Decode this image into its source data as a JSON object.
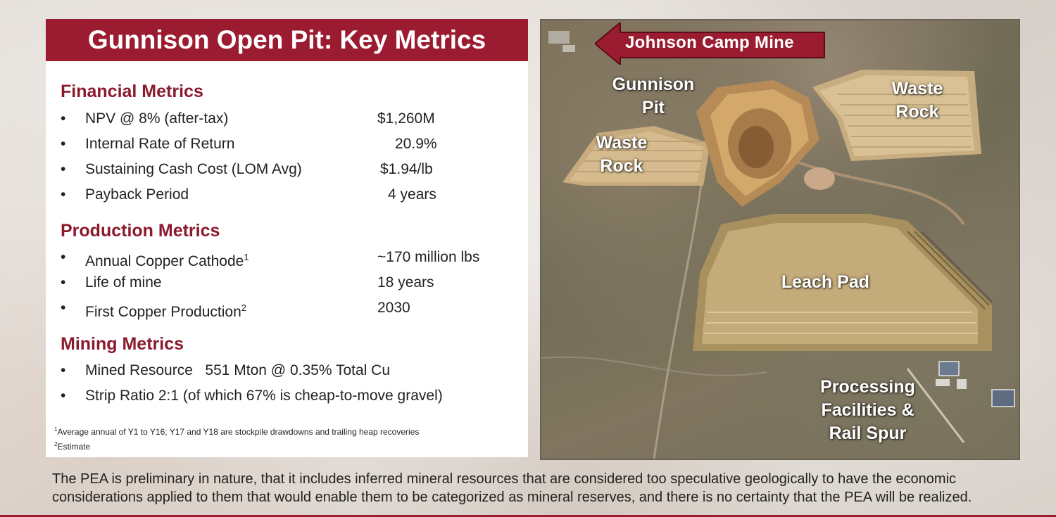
{
  "title": "Gunnison Open Pit: Key Metrics",
  "sections": {
    "financial": {
      "heading": "Financial Metrics",
      "rows": [
        {
          "label": "NPV @ 8% (after-tax)",
          "value": "$1,260M"
        },
        {
          "label": "Internal Rate of Return",
          "value": "20.9%"
        },
        {
          "label": "Sustaining Cash Cost (LOM Avg)",
          "value": "$1.94/lb"
        },
        {
          "label": "Payback Period",
          "value": "4 years"
        }
      ]
    },
    "production": {
      "heading": "Production Metrics",
      "rows": [
        {
          "label": "Annual Copper Cathode",
          "sup": "1",
          "value": "~170 million lbs"
        },
        {
          "label": "Life of mine",
          "value": "18 years"
        },
        {
          "label": "First Copper Production",
          "sup": "2",
          "value": "2030"
        }
      ]
    },
    "mining": {
      "heading": "Mining Metrics",
      "rows": [
        {
          "label": "Mined Resource   551 Mton @ 0.35% Total Cu"
        },
        {
          "label": "Strip Ratio 2:1 (of which 67% is cheap-to-move gravel)"
        }
      ]
    }
  },
  "bullet": "•",
  "footnotes": [
    {
      "mark": "1",
      "text": "Average annual of Y1 to Y16; Y17 and Y18 are stockpile drawdowns and trailing heap recoveries"
    },
    {
      "mark": "2",
      "text": "Estimate"
    }
  ],
  "map": {
    "arrow_label": "Johnson Camp Mine",
    "labels": {
      "gunnison_pit": [
        "Gunnison",
        "Pit"
      ],
      "waste_rock_left": [
        "Waste",
        "Rock"
      ],
      "waste_rock_right": [
        "Waste",
        "Rock"
      ],
      "leach_pad": [
        "Leach Pad"
      ],
      "processing": [
        "Processing",
        "Facilities &",
        "Rail Spur"
      ]
    }
  },
  "disclaimer": "The PEA is preliminary in nature, that it includes inferred mineral resources that are considered too speculative geologically to have the economic considerations applied to them that would enable them to be categorized as mineral reserves, and there is no certainty that the PEA will be realized.",
  "colors": {
    "brand": "#9b1b30",
    "heading": "#8b1a2e"
  }
}
